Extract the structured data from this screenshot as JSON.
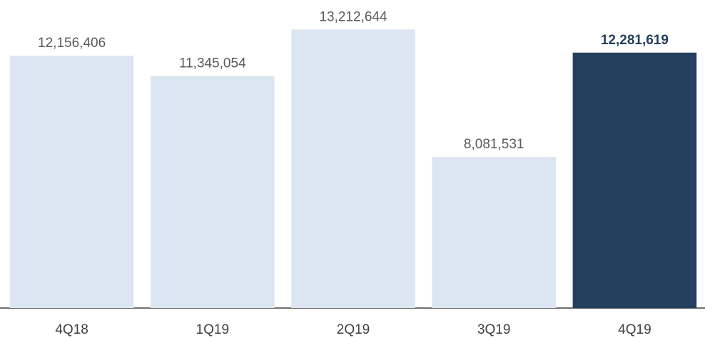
{
  "chart_data": {
    "type": "bar",
    "categories": [
      "4Q18",
      "1Q19",
      "2Q19",
      "3Q19",
      "4Q19"
    ],
    "values": [
      12156406,
      11345054,
      13212644,
      8081531,
      12281619
    ],
    "value_labels": [
      "12,156,406",
      "11,345,054",
      "13,212,644",
      "8,081,531",
      "12,281,619"
    ],
    "colors": [
      "#dce6f2",
      "#dce6f2",
      "#dce6f2",
      "#dce6f2",
      "#253f5e"
    ],
    "label_colors": [
      "#595959",
      "#595959",
      "#595959",
      "#595959",
      "#253f5e"
    ],
    "label_weights": [
      "normal",
      "normal",
      "normal",
      "normal",
      "bold"
    ],
    "ylim": [
      2000000,
      14400000
    ]
  }
}
